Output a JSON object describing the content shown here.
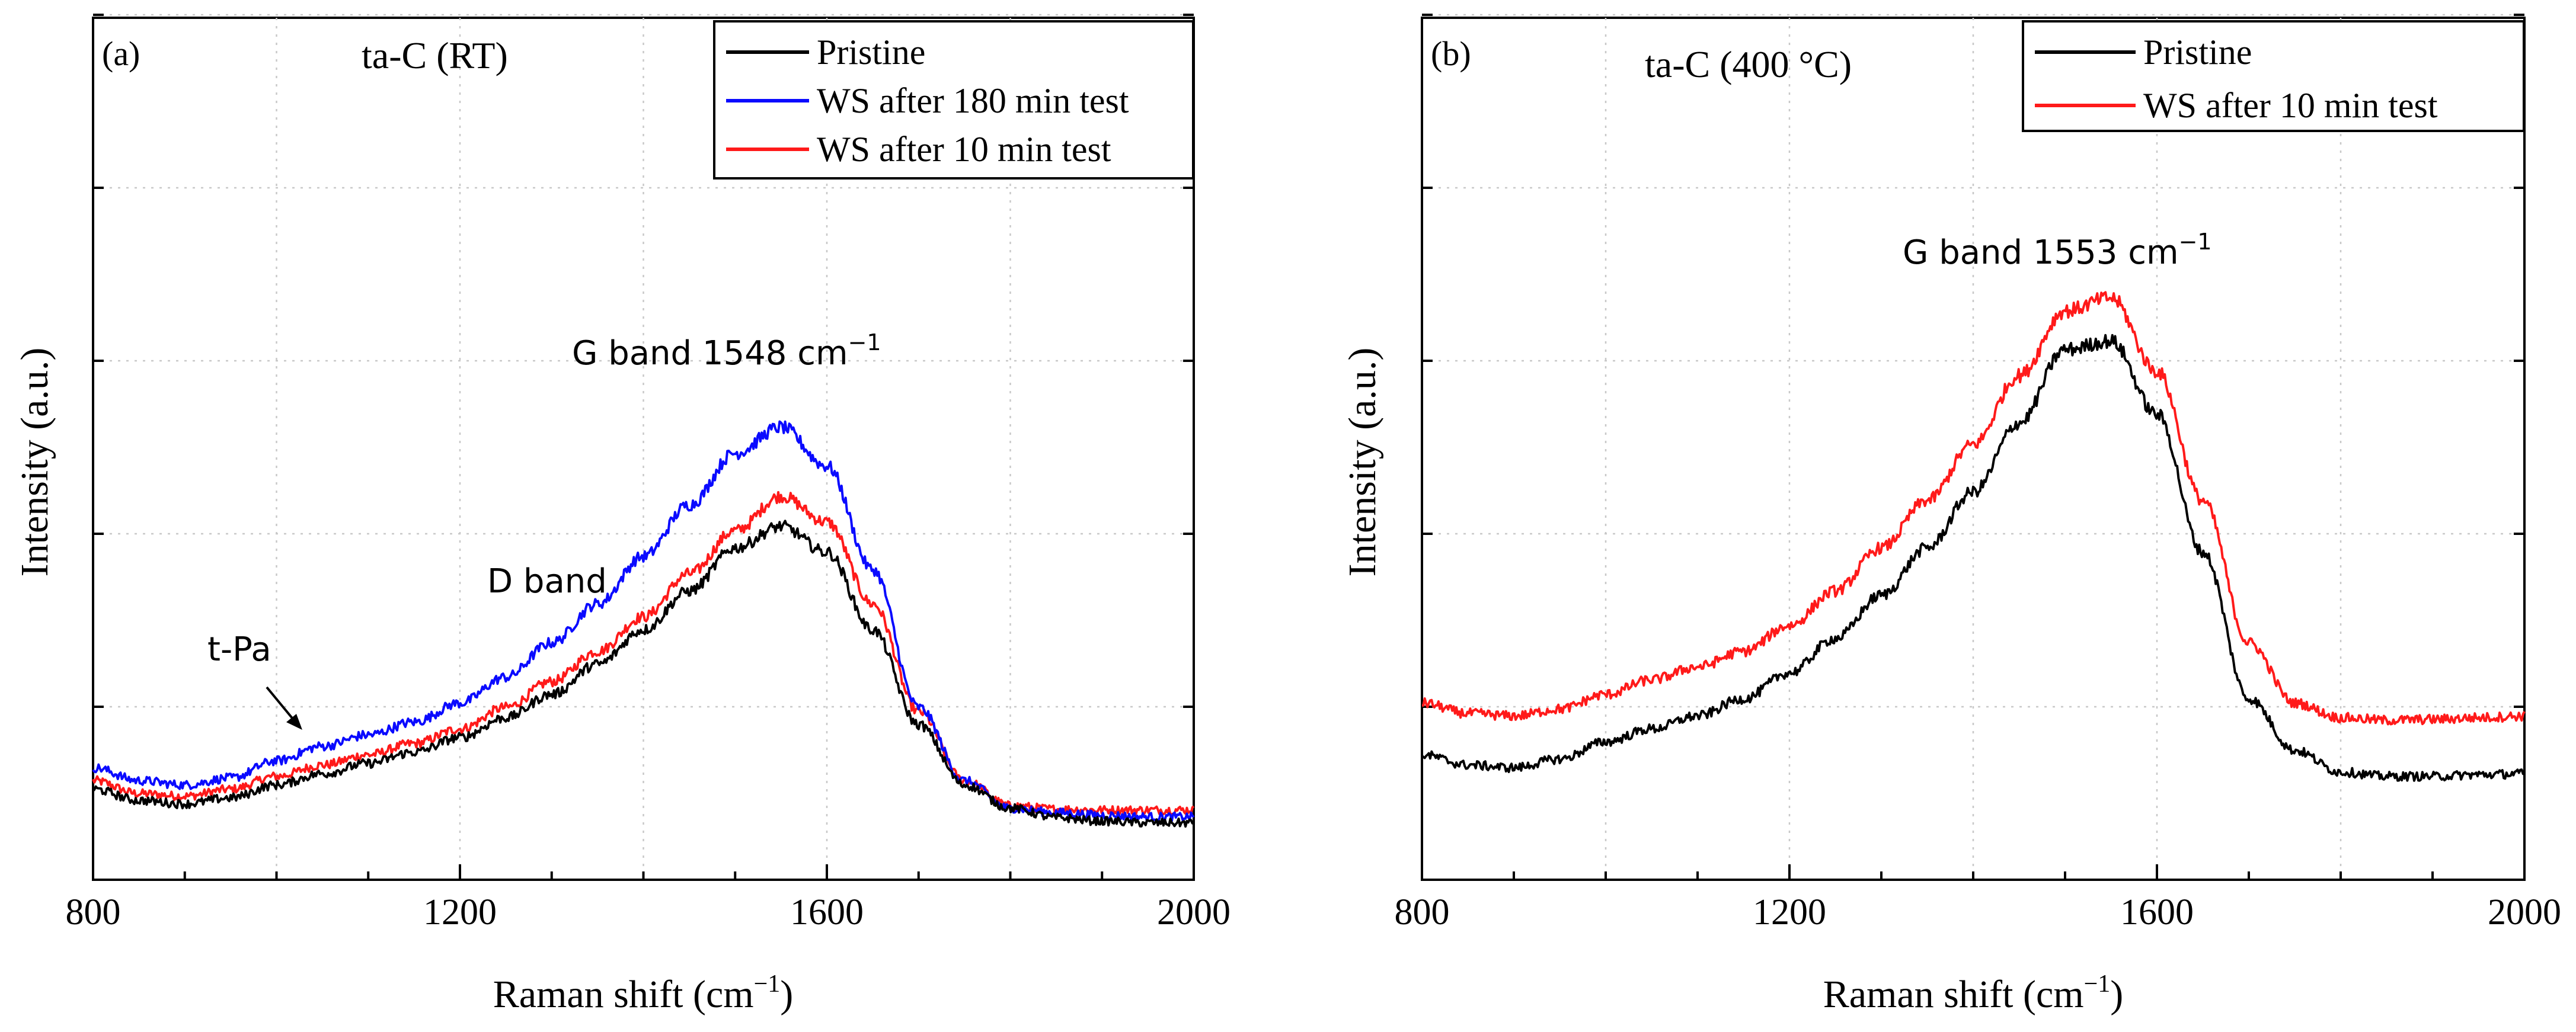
{
  "chart_data": [
    {
      "type": "line",
      "panel_label": "(a)",
      "title": "ta-C (RT)",
      "xlabel": "Raman shift (cm",
      "xlabel_sup": "−1",
      "xlabel_end": ")",
      "ylabel": "Intensity (a.u.)",
      "xlim": [
        800,
        2000
      ],
      "ylim": [
        0,
        100
      ],
      "xticks": [
        "800",
        "1200",
        "1600",
        "2000"
      ],
      "grid": true,
      "legend_position": "top-right",
      "series": [
        {
          "name": "Pristine",
          "color": "#000000",
          "x": [
            800,
            850,
            900,
            950,
            1000,
            1050,
            1100,
            1150,
            1200,
            1250,
            1300,
            1350,
            1400,
            1450,
            1500,
            1550,
            1600,
            1650,
            1700,
            1750,
            1800,
            1850,
            1900,
            1950,
            2000
          ],
          "values": [
            10.5,
            9.2,
            8.8,
            9.5,
            11,
            12.3,
            13.5,
            14.8,
            16.5,
            18.8,
            21.5,
            25,
            29,
            33.5,
            38.5,
            41,
            38,
            29,
            18,
            11,
            8.3,
            7.2,
            6.8,
            6.6,
            6.6
          ]
        },
        {
          "name": "WS after 180 min test",
          "color": "#0a0aff",
          "x": [
            800,
            850,
            900,
            950,
            1000,
            1050,
            1100,
            1150,
            1200,
            1250,
            1300,
            1350,
            1400,
            1450,
            1500,
            1550,
            1600,
            1650,
            1700,
            1750,
            1800,
            1850,
            1900,
            1950,
            2000
          ],
          "values": [
            13,
            11.5,
            11,
            11.8,
            13.8,
            15.5,
            16.8,
            18.3,
            20.5,
            23.5,
            27.5,
            32,
            37.5,
            43.5,
            49.5,
            52.5,
            48,
            36,
            20,
            11.5,
            8.3,
            7.8,
            7.5,
            7.3,
            7.3
          ]
        },
        {
          "name": "WS after 10 min test",
          "color": "#ff1a1a",
          "x": [
            800,
            850,
            900,
            950,
            1000,
            1050,
            1100,
            1150,
            1200,
            1250,
            1300,
            1350,
            1400,
            1450,
            1500,
            1550,
            1600,
            1650,
            1700,
            1750,
            1800,
            1850,
            1900,
            1950,
            2000
          ],
          "values": [
            11.5,
            10,
            9.7,
            10.5,
            12,
            13.3,
            14.5,
            15.8,
            17.5,
            20,
            23,
            26.5,
            30.5,
            35.5,
            40.5,
            44.5,
            41.5,
            32,
            19.5,
            11.5,
            8.6,
            8.2,
            8.1,
            8.1,
            8.1
          ]
        }
      ],
      "annotations": [
        {
          "text": "G band  1548 cm",
          "sup": "−1"
        },
        {
          "text": "D band"
        },
        {
          "text": "t-Pa"
        }
      ]
    },
    {
      "type": "line",
      "panel_label": "(b)",
      "title": "ta-C (400 °C)",
      "xlabel": "Raman shift (cm",
      "xlabel_sup": "−1",
      "xlabel_end": ")",
      "ylabel": "Intensity (a.u.)",
      "xlim": [
        800,
        2000
      ],
      "ylim": [
        0,
        100
      ],
      "xticks": [
        "800",
        "1200",
        "1600",
        "2000"
      ],
      "grid": true,
      "legend_position": "top-right",
      "series": [
        {
          "name": "Pristine",
          "color": "#000000",
          "x": [
            800,
            850,
            900,
            950,
            1000,
            1050,
            1100,
            1150,
            1200,
            1250,
            1300,
            1350,
            1400,
            1450,
            1500,
            1550,
            1600,
            1650,
            1700,
            1750,
            1800,
            1850,
            1900,
            1950,
            2000
          ],
          "values": [
            14.5,
            13.3,
            13,
            14,
            16,
            17.5,
            19,
            21,
            24,
            28,
            33,
            38.5,
            45,
            53,
            61.5,
            62.5,
            54,
            38,
            21,
            15,
            12.5,
            12,
            12,
            12.2,
            12.3
          ]
        },
        {
          "name": "WS after 10 min test",
          "color": "#ff1a1a",
          "x": [
            800,
            850,
            900,
            950,
            1000,
            1050,
            1100,
            1150,
            1200,
            1250,
            1300,
            1350,
            1400,
            1450,
            1500,
            1550,
            1600,
            1650,
            1700,
            1750,
            1800,
            1850,
            1900,
            1950,
            2000
          ],
          "values": [
            20.5,
            19.3,
            19,
            19.8,
            21.5,
            23.2,
            24.7,
            26.5,
            29.5,
            33.5,
            38.5,
            44,
            50.5,
            58.5,
            66,
            67.5,
            59,
            44,
            27.5,
            20.5,
            18.8,
            18.5,
            18.6,
            18.8,
            19
          ]
        }
      ],
      "annotations": [
        {
          "text": "G band  1553 cm",
          "sup": "−1"
        }
      ]
    }
  ]
}
